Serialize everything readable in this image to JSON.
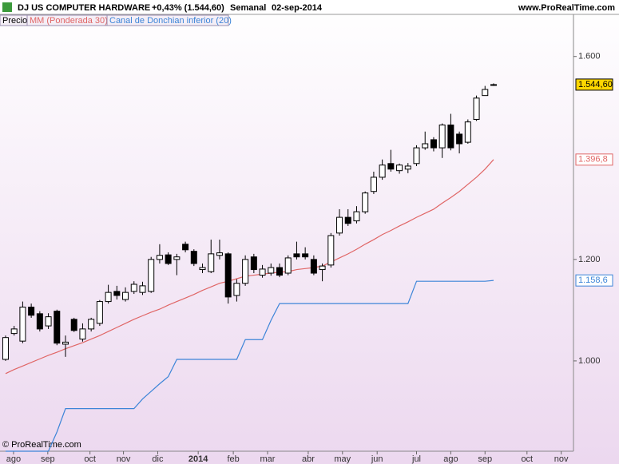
{
  "chart_data": {
    "type": "candlestick",
    "title": "DJ US COMPUTER HARDWARE",
    "change": "+0,43% (1.544,60)",
    "period": "Semanal",
    "date": "02-sep-2014",
    "source": "www.ProRealTime.com",
    "copyright": "© ProRealTime.com",
    "x": [
      0,
      1,
      2,
      3,
      4,
      5,
      6,
      7,
      8,
      9,
      10,
      11,
      12,
      13,
      14,
      15,
      16,
      17,
      18,
      19,
      20,
      21,
      22,
      23,
      24,
      25,
      26,
      27,
      28,
      29,
      30,
      31,
      32,
      33,
      34,
      35,
      36,
      37,
      38,
      39,
      40,
      41,
      42,
      43,
      44,
      45,
      46,
      47,
      48,
      49,
      50,
      51,
      52,
      53,
      54,
      55,
      56,
      57
    ],
    "price": {
      "name": "Precio",
      "color": "#000000",
      "last_label": "1.544,60",
      "label_color": "#ffd700",
      "open": [
        1003,
        1054,
        1039,
        1106,
        1093,
        1069,
        1098,
        1033,
        1082,
        1043,
        1063,
        1074,
        1117,
        1137,
        1121,
        1137,
        1135,
        1137,
        1200,
        1209,
        1200,
        1230,
        1216,
        1180,
        1176,
        1208,
        1211,
        1129,
        1153,
        1205,
        1169,
        1173,
        1184,
        1173,
        1211,
        1211,
        1200,
        1180,
        1189,
        1252,
        1283,
        1276,
        1294,
        1334,
        1362,
        1389,
        1375,
        1378,
        1389,
        1420,
        1436,
        1420,
        1465,
        1447,
        1431,
        1476,
        1523,
        1544.6
      ],
      "high": [
        1050,
        1069,
        1117,
        1113,
        1098,
        1094,
        1101,
        1050,
        1085,
        1074,
        1085,
        1120,
        1150,
        1148,
        1145,
        1157,
        1156,
        1205,
        1230,
        1214,
        1211,
        1235,
        1220,
        1192,
        1239,
        1239,
        1214,
        1161,
        1208,
        1211,
        1189,
        1192,
        1192,
        1208,
        1235,
        1224,
        1208,
        1192,
        1252,
        1299,
        1299,
        1305,
        1334,
        1373,
        1397,
        1416,
        1389,
        1390,
        1425,
        1452,
        1441,
        1468,
        1487,
        1452,
        1476,
        1523,
        1542,
        1547
      ],
      "low": [
        1000,
        1050,
        1035,
        1085,
        1058,
        1063,
        1031,
        1008,
        1057,
        1038,
        1058,
        1069,
        1113,
        1121,
        1117,
        1132,
        1130,
        1134,
        1192,
        1189,
        1169,
        1214,
        1187,
        1173,
        1173,
        1200,
        1113,
        1117,
        1148,
        1173,
        1164,
        1168,
        1165,
        1169,
        1200,
        1200,
        1169,
        1157,
        1184,
        1247,
        1266,
        1271,
        1290,
        1329,
        1357,
        1373,
        1369,
        1370,
        1384,
        1416,
        1413,
        1400,
        1415,
        1409,
        1428,
        1473,
        1527,
        1542
      ],
      "close": [
        1046,
        1063,
        1106,
        1090,
        1063,
        1087,
        1035,
        1037,
        1060,
        1063,
        1082,
        1117,
        1135,
        1129,
        1135,
        1151,
        1148,
        1200,
        1208,
        1192,
        1205,
        1219,
        1192,
        1184,
        1211,
        1213,
        1126,
        1153,
        1200,
        1180,
        1181,
        1184,
        1169,
        1203,
        1205,
        1205,
        1173,
        1187,
        1247,
        1283,
        1271,
        1294,
        1331,
        1362,
        1386,
        1378,
        1386,
        1384,
        1420,
        1428,
        1420,
        1465,
        1420,
        1428,
        1471,
        1518,
        1535,
        1544.6
      ]
    },
    "series": [
      {
        "name": "MM (Ponderada 30)",
        "color": "#e06666",
        "last_label": "1.396,8",
        "values": [
          975,
          983,
          990,
          997,
          1004,
          1011,
          1017,
          1024,
          1030,
          1036,
          1043,
          1050,
          1058,
          1066,
          1074,
          1082,
          1089,
          1096,
          1102,
          1110,
          1117,
          1124,
          1131,
          1139,
          1146,
          1153,
          1157,
          1162,
          1167,
          1169,
          1171,
          1173,
          1175,
          1176,
          1180,
          1182,
          1184,
          1187,
          1195,
          1203,
          1211,
          1220,
          1230,
          1239,
          1249,
          1257,
          1266,
          1274,
          1283,
          1291,
          1299,
          1311,
          1322,
          1334,
          1348,
          1362,
          1378,
          1396.8
        ]
      },
      {
        "name": "Canal de Donchian inferior (20)",
        "color": "#3d85d8",
        "last_label": "1.158,6",
        "values": [
          822,
          822,
          822,
          822,
          822,
          822,
          860,
          906,
          906,
          906,
          906,
          906,
          906,
          906,
          906,
          906,
          925,
          940,
          955,
          969,
          1003,
          1003,
          1003,
          1003,
          1003,
          1003,
          1003,
          1003,
          1042,
          1042,
          1042,
          1080,
          1113,
          1113,
          1113,
          1113,
          1113,
          1113,
          1113,
          1113,
          1113,
          1113,
          1113,
          1113,
          1113,
          1113,
          1113,
          1113,
          1157,
          1157,
          1157,
          1157,
          1157,
          1157,
          1157,
          1157,
          1157,
          1158.6
        ]
      }
    ],
    "xlim": [
      -0.65,
      66.33
    ],
    "ylim": [
      822,
      1683
    ],
    "xticks": [
      {
        "value": 0.93,
        "label": "ago"
      },
      {
        "value": 4.93,
        "label": "sep"
      },
      {
        "value": 9.86,
        "label": "oct"
      },
      {
        "value": 13.77,
        "label": "nov"
      },
      {
        "value": 17.77,
        "label": "dic"
      },
      {
        "value": 22.5,
        "label": "2014"
      },
      {
        "value": 26.6,
        "label": "feb"
      },
      {
        "value": 30.6,
        "label": "mar"
      },
      {
        "value": 35.35,
        "label": "abr"
      },
      {
        "value": 39.35,
        "label": "may"
      },
      {
        "value": 43.4,
        "label": "jun"
      },
      {
        "value": 48,
        "label": "jul"
      },
      {
        "value": 52,
        "label": "ago"
      },
      {
        "value": 56,
        "label": "sep"
      },
      {
        "value": 60.9,
        "label": "oct"
      },
      {
        "value": 64.9,
        "label": "nov"
      }
    ],
    "yticks": [
      {
        "value": 1000,
        "label": "1.000"
      },
      {
        "value": 1200,
        "label": "1.200"
      },
      {
        "value": 1600,
        "label": "1.600"
      }
    ]
  }
}
